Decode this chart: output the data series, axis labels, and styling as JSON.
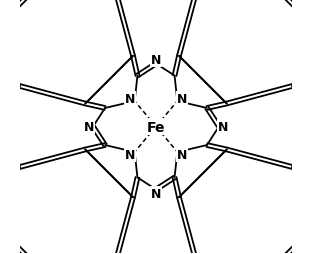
{
  "bg_color": "#ffffff",
  "line_color": "#000000",
  "text_color": "#000000",
  "fe_label": "Fe",
  "n_label": "N",
  "font_size_fe": 10,
  "font_size_n": 9,
  "line_width": 1.3,
  "figsize": [
    3.12,
    2.55
  ],
  "dpi": 100,
  "xlim": [
    -1.55,
    1.55
  ],
  "ylim": [
    -1.45,
    1.45
  ]
}
